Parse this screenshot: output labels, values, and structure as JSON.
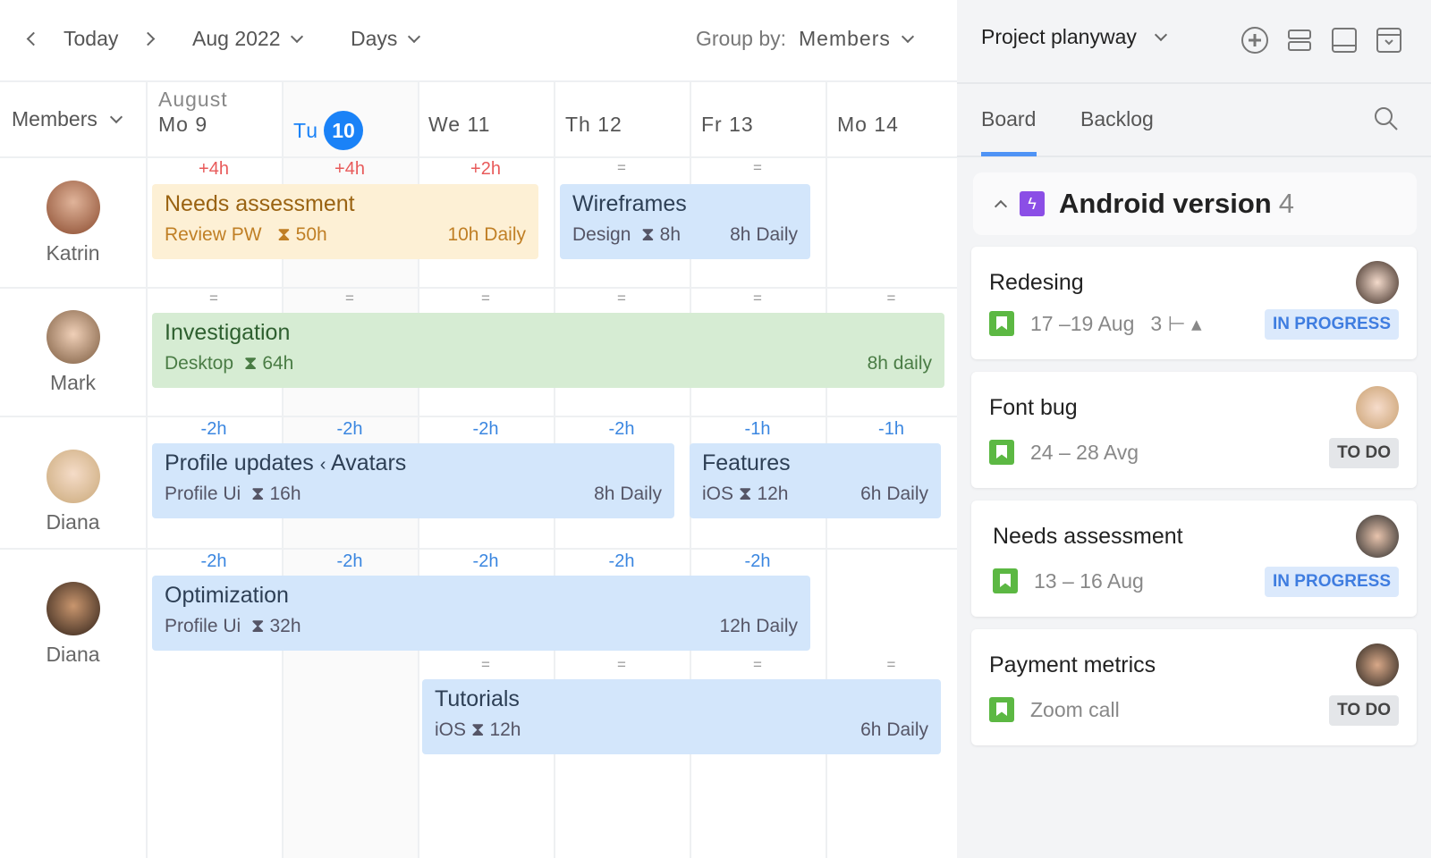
{
  "toolbar": {
    "today": "Today",
    "month": "Aug 2022",
    "view": "Days",
    "group_by_label": "Group by:",
    "group_by_value": "Members"
  },
  "grid": {
    "members_header": "Members",
    "month_label": "August",
    "days": [
      {
        "dow": "Mo",
        "num": "9"
      },
      {
        "dow": "Tu",
        "num": "10",
        "today": true
      },
      {
        "dow": "We",
        "num": "11"
      },
      {
        "dow": "Th",
        "num": "12"
      },
      {
        "dow": "Fr",
        "num": "13"
      },
      {
        "dow": "Mo",
        "num": "14"
      }
    ],
    "members": [
      {
        "name": "Katrin",
        "deltas": [
          "+4h",
          "+4h",
          "+2h",
          "=",
          "=",
          ""
        ]
      },
      {
        "name": "Mark",
        "deltas": [
          "=",
          "=",
          "=",
          "=",
          "=",
          "="
        ]
      },
      {
        "name": "Diana",
        "deltas": [
          "-2h",
          "-2h",
          "-2h",
          "-2h",
          "-1h",
          "-1h"
        ]
      },
      {
        "name": "Diana",
        "deltas": [
          "-2h",
          "-2h",
          "-2h",
          "-2h",
          "-2h",
          ""
        ],
        "deltas2": [
          "",
          "",
          "=",
          "=",
          "=",
          "="
        ]
      }
    ],
    "tasks": [
      {
        "title": "Needs assessment",
        "project": "Review PW",
        "estimate": "50h",
        "daily": "10h Daily",
        "color": "yellow"
      },
      {
        "title": "Wireframes",
        "project": "Design",
        "estimate": "8h",
        "daily": "8h Daily",
        "color": "blue"
      },
      {
        "title": "Investigation",
        "project": "Desktop",
        "estimate": "64h",
        "daily": "8h daily",
        "color": "green"
      },
      {
        "title": "Profile updates",
        "parent": "Avatars",
        "project": "Profile Ui",
        "estimate": "16h",
        "daily": "8h Daily",
        "color": "blue"
      },
      {
        "title": "Features",
        "project": "iOS",
        "estimate": "12h",
        "daily": "6h Daily",
        "color": "blue"
      },
      {
        "title": "Optimization",
        "project": "Profile Ui",
        "estimate": "32h",
        "daily": "12h Daily",
        "color": "blue"
      },
      {
        "title": "Tutorials",
        "project": "iOS",
        "estimate": "12h",
        "daily": "6h Daily",
        "color": "blue"
      }
    ]
  },
  "panel": {
    "project": "Project planyway",
    "tabs": [
      "Board",
      "Backlog"
    ],
    "active_tab": "Board",
    "group": {
      "title": "Android version",
      "count": "4"
    },
    "cards": [
      {
        "title": "Redesing",
        "dates": "17 –19 Aug",
        "subtasks": "3",
        "status": "IN PROGRESS"
      },
      {
        "title": "Font bug",
        "dates": "24 – 28 Avg",
        "status": "TO DO"
      },
      {
        "title": "Needs assessment",
        "dates": "13 – 16 Aug",
        "status": "IN PROGRESS"
      },
      {
        "title": "Payment metrics",
        "dates": "Zoom call",
        "status": "TO DO"
      }
    ]
  },
  "colors": {
    "accent": "#1a82f7",
    "over": "#e85a5a",
    "under": "#3a86e0"
  }
}
